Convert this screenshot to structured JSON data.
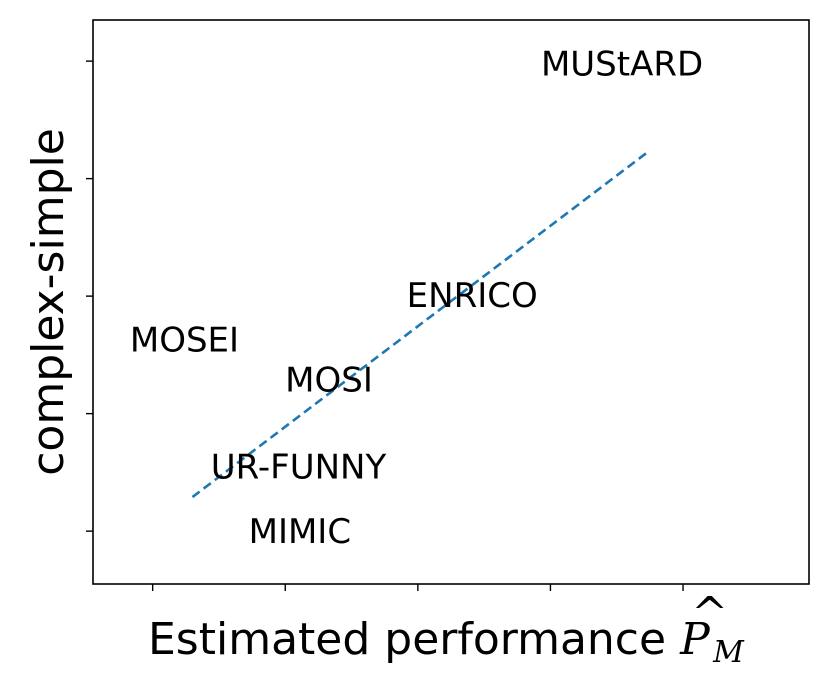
{
  "chart_data": {
    "type": "scatter",
    "title": "",
    "xlabel": "Estimated performance",
    "xlabel_math": {
      "symbol": "P",
      "subscript": "M",
      "accent": "hat"
    },
    "ylabel": "complex-simple",
    "xlim": [
      0,
      5.4
    ],
    "ylim": [
      0,
      4.8
    ],
    "x_ticks": [
      0.45,
      1.45,
      2.45,
      3.45,
      4.45
    ],
    "y_ticks": [
      0.45,
      1.45,
      2.45,
      3.45,
      4.45
    ],
    "tick_labels_shown": false,
    "grid": false,
    "points": [
      {
        "label": "MUStARD",
        "x": 3.99,
        "y": 4.43
      },
      {
        "label": "ENRICO",
        "x": 2.86,
        "y": 2.46
      },
      {
        "label": "MOSEI",
        "x": 0.69,
        "y": 2.08
      },
      {
        "label": "MOSI",
        "x": 1.78,
        "y": 1.74
      },
      {
        "label": "UR-FUNNY",
        "x": 1.55,
        "y": 1.0
      },
      {
        "label": "MIMIC",
        "x": 1.56,
        "y": 0.45
      }
    ],
    "trend_line": {
      "style": "dashed",
      "color": "#1f77b4",
      "x": [
        0.75,
        4.2
      ],
      "y": [
        0.74,
        3.69
      ]
    }
  }
}
